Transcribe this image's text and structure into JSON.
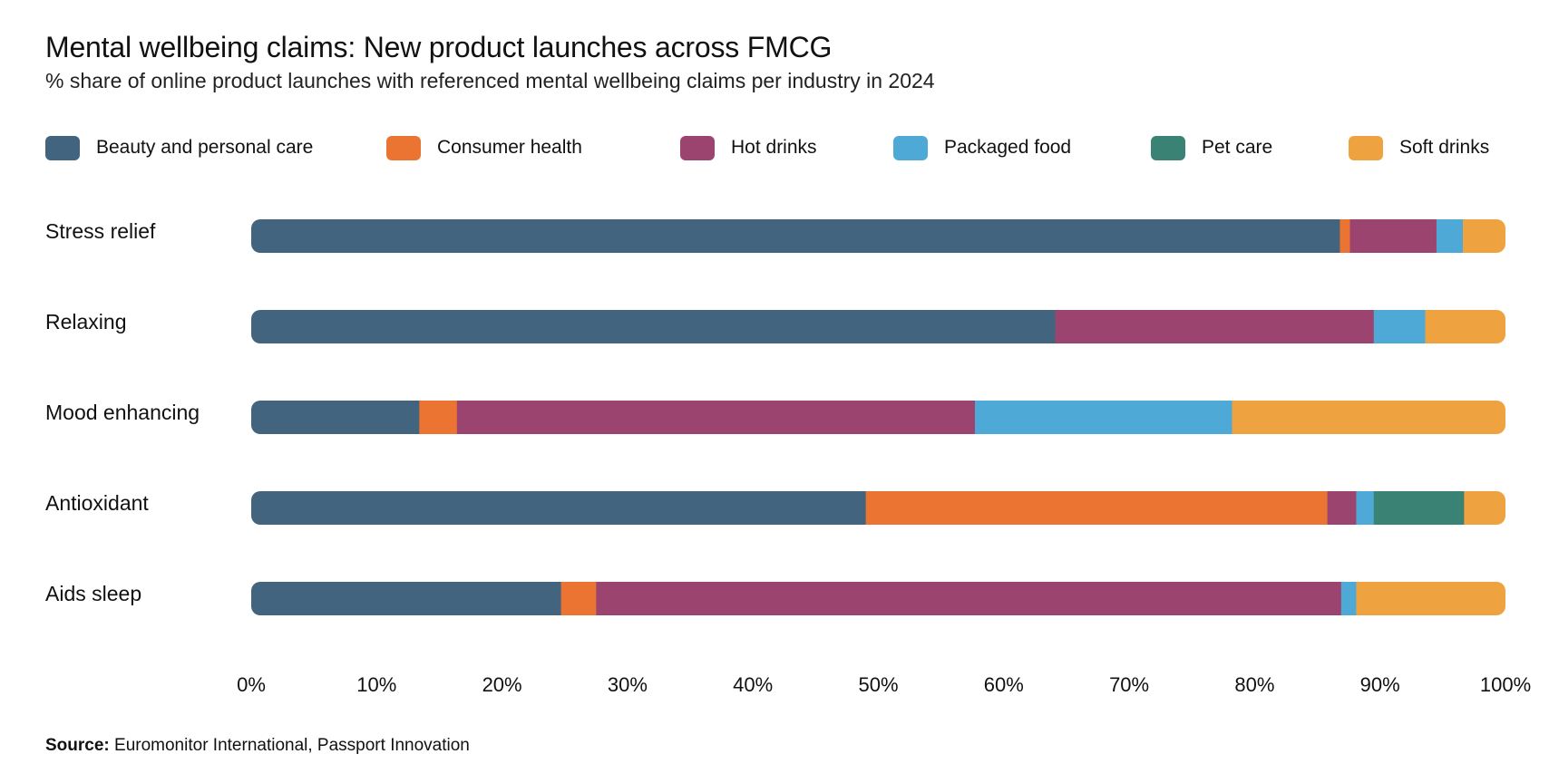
{
  "title": "Mental wellbeing claims: New product launches across FMCG",
  "subtitle": "% share of online product launches with referenced mental wellbeing claims per industry in 2024",
  "source": {
    "label": "Source:",
    "text": "Euromonitor International, Passport Innovation"
  },
  "chart_data": {
    "type": "bar",
    "orientation": "horizontal",
    "stacked": true,
    "title": "Mental wellbeing claims: New product launches across FMCG",
    "subtitle": "% share of online product launches with referenced mental wellbeing claims per industry in 2024",
    "xlabel": "",
    "ylabel": "",
    "xlim": [
      0,
      100
    ],
    "x_ticks": [
      "0%",
      "10%",
      "20%",
      "30%",
      "40%",
      "50%",
      "60%",
      "70%",
      "80%",
      "90%",
      "100%"
    ],
    "grid": false,
    "legend_position": "top",
    "categories": [
      "Stress relief",
      "Relaxing",
      "Mood enhancing",
      "Antioxidant",
      "Aids sleep"
    ],
    "series": [
      {
        "name": "Beauty and personal care",
        "color": "#42647E",
        "values": [
          86.8,
          64.1,
          13.4,
          49.0,
          24.7
        ]
      },
      {
        "name": "Consumer health",
        "color": "#EC7433",
        "values": [
          0.8,
          0.0,
          3.0,
          36.8,
          2.8
        ]
      },
      {
        "name": "Hot drinks",
        "color": "#9C4470",
        "values": [
          6.9,
          25.4,
          41.3,
          2.3,
          59.4
        ]
      },
      {
        "name": "Packaged food",
        "color": "#4EA9D6",
        "values": [
          2.1,
          4.1,
          20.5,
          1.4,
          1.2
        ]
      },
      {
        "name": "Pet care",
        "color": "#3A8273",
        "values": [
          0.0,
          0.0,
          0.0,
          7.2,
          0.0
        ]
      },
      {
        "name": "Soft drinks",
        "color": "#EFA240",
        "values": [
          3.4,
          6.4,
          21.8,
          3.3,
          11.9
        ]
      }
    ]
  }
}
